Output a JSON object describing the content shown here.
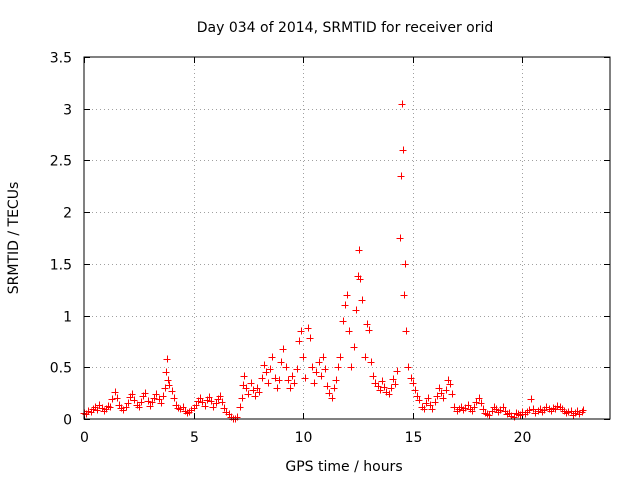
{
  "chart_data": {
    "type": "scatter",
    "title": "Day 034 of 2014, SRMTID for receiver orid",
    "xlabel": "GPS time / hours",
    "ylabel": "SRMTID / TECUs",
    "xlim": [
      0,
      24
    ],
    "ylim": [
      0,
      3.5
    ],
    "xticks": [
      0,
      5,
      10,
      15,
      20
    ],
    "xtick_labels": [
      "0",
      "5",
      "10",
      "15",
      "20"
    ],
    "yticks": [
      0,
      0.5,
      1,
      1.5,
      2,
      2.5,
      3,
      3.5
    ],
    "ytick_labels": [
      "0",
      "0.5",
      "1",
      "1.5",
      "2",
      "2.5",
      "3",
      "3.5"
    ],
    "grid": true,
    "marker": "+",
    "color": "#ff0000",
    "series": [
      {
        "name": "orid",
        "points": [
          [
            0.0,
            0.06
          ],
          [
            0.1,
            0.05
          ],
          [
            0.2,
            0.08
          ],
          [
            0.3,
            0.07
          ],
          [
            0.4,
            0.1
          ],
          [
            0.5,
            0.12
          ],
          [
            0.6,
            0.09
          ],
          [
            0.7,
            0.14
          ],
          [
            0.8,
            0.11
          ],
          [
            0.9,
            0.08
          ],
          [
            1.0,
            0.1
          ],
          [
            1.1,
            0.13
          ],
          [
            1.2,
            0.12
          ],
          [
            1.3,
            0.19
          ],
          [
            1.4,
            0.26
          ],
          [
            1.5,
            0.2
          ],
          [
            1.6,
            0.14
          ],
          [
            1.7,
            0.11
          ],
          [
            1.8,
            0.09
          ],
          [
            1.9,
            0.12
          ],
          [
            2.0,
            0.15
          ],
          [
            2.1,
            0.21
          ],
          [
            2.2,
            0.24
          ],
          [
            2.3,
            0.18
          ],
          [
            2.4,
            0.14
          ],
          [
            2.5,
            0.12
          ],
          [
            2.6,
            0.16
          ],
          [
            2.7,
            0.22
          ],
          [
            2.8,
            0.25
          ],
          [
            2.9,
            0.17
          ],
          [
            3.0,
            0.13
          ],
          [
            3.1,
            0.16
          ],
          [
            3.2,
            0.2
          ],
          [
            3.3,
            0.24
          ],
          [
            3.4,
            0.19
          ],
          [
            3.5,
            0.15
          ],
          [
            3.6,
            0.22
          ],
          [
            3.7,
            0.3
          ],
          [
            3.75,
            0.45
          ],
          [
            3.8,
            0.58
          ],
          [
            3.85,
            0.38
          ],
          [
            3.9,
            0.33
          ],
          [
            4.0,
            0.27
          ],
          [
            4.1,
            0.2
          ],
          [
            4.2,
            0.14
          ],
          [
            4.3,
            0.11
          ],
          [
            4.4,
            0.1
          ],
          [
            4.5,
            0.12
          ],
          [
            4.6,
            0.08
          ],
          [
            4.7,
            0.06
          ],
          [
            4.8,
            0.07
          ],
          [
            4.9,
            0.09
          ],
          [
            5.0,
            0.11
          ],
          [
            5.1,
            0.14
          ],
          [
            5.2,
            0.17
          ],
          [
            5.3,
            0.2
          ],
          [
            5.4,
            0.16
          ],
          [
            5.5,
            0.13
          ],
          [
            5.6,
            0.18
          ],
          [
            5.7,
            0.21
          ],
          [
            5.8,
            0.17
          ],
          [
            5.9,
            0.12
          ],
          [
            6.0,
            0.15
          ],
          [
            6.1,
            0.19
          ],
          [
            6.2,
            0.22
          ],
          [
            6.3,
            0.16
          ],
          [
            6.4,
            0.11
          ],
          [
            6.5,
            0.07
          ],
          [
            6.6,
            0.05
          ],
          [
            6.7,
            0.02
          ],
          [
            6.8,
            0.0
          ],
          [
            6.9,
            0.0
          ],
          [
            7.0,
            0.02
          ],
          [
            7.1,
            0.12
          ],
          [
            7.2,
            0.2
          ],
          [
            7.25,
            0.33
          ],
          [
            7.3,
            0.42
          ],
          [
            7.4,
            0.3
          ],
          [
            7.5,
            0.24
          ],
          [
            7.6,
            0.35
          ],
          [
            7.7,
            0.28
          ],
          [
            7.8,
            0.22
          ],
          [
            7.9,
            0.3
          ],
          [
            8.0,
            0.26
          ],
          [
            8.1,
            0.4
          ],
          [
            8.2,
            0.52
          ],
          [
            8.3,
            0.45
          ],
          [
            8.4,
            0.35
          ],
          [
            8.5,
            0.48
          ],
          [
            8.6,
            0.6
          ],
          [
            8.7,
            0.4
          ],
          [
            8.8,
            0.3
          ],
          [
            8.9,
            0.38
          ],
          [
            9.0,
            0.55
          ],
          [
            9.1,
            0.68
          ],
          [
            9.2,
            0.5
          ],
          [
            9.3,
            0.38
          ],
          [
            9.4,
            0.3
          ],
          [
            9.5,
            0.42
          ],
          [
            9.6,
            0.35
          ],
          [
            9.7,
            0.48
          ],
          [
            9.8,
            0.75
          ],
          [
            9.9,
            0.85
          ],
          [
            10.0,
            0.6
          ],
          [
            10.1,
            0.4
          ],
          [
            10.2,
            0.88
          ],
          [
            10.3,
            0.78
          ],
          [
            10.4,
            0.5
          ],
          [
            10.5,
            0.35
          ],
          [
            10.6,
            0.45
          ],
          [
            10.7,
            0.55
          ],
          [
            10.8,
            0.42
          ],
          [
            10.9,
            0.6
          ],
          [
            11.0,
            0.48
          ],
          [
            11.1,
            0.32
          ],
          [
            11.2,
            0.25
          ],
          [
            11.3,
            0.2
          ],
          [
            11.4,
            0.3
          ],
          [
            11.5,
            0.38
          ],
          [
            11.6,
            0.5
          ],
          [
            11.7,
            0.6
          ],
          [
            11.8,
            0.95
          ],
          [
            11.9,
            1.1
          ],
          [
            12.0,
            1.2
          ],
          [
            12.1,
            0.85
          ],
          [
            12.2,
            0.5
          ],
          [
            12.3,
            0.7
          ],
          [
            12.4,
            1.05
          ],
          [
            12.5,
            1.38
          ],
          [
            12.55,
            1.63
          ],
          [
            12.6,
            1.35
          ],
          [
            12.7,
            1.15
          ],
          [
            12.8,
            0.6
          ],
          [
            12.9,
            0.92
          ],
          [
            13.0,
            0.86
          ],
          [
            13.1,
            0.55
          ],
          [
            13.2,
            0.42
          ],
          [
            13.3,
            0.35
          ],
          [
            13.4,
            0.32
          ],
          [
            13.5,
            0.28
          ],
          [
            13.6,
            0.37
          ],
          [
            13.7,
            0.31
          ],
          [
            13.8,
            0.26
          ],
          [
            13.9,
            0.24
          ],
          [
            14.0,
            0.3
          ],
          [
            14.1,
            0.39
          ],
          [
            14.2,
            0.34
          ],
          [
            14.3,
            0.46
          ],
          [
            14.4,
            1.75
          ],
          [
            14.45,
            2.35
          ],
          [
            14.5,
            3.05
          ],
          [
            14.55,
            2.6
          ],
          [
            14.6,
            1.2
          ],
          [
            14.65,
            1.5
          ],
          [
            14.7,
            0.85
          ],
          [
            14.8,
            0.5
          ],
          [
            14.9,
            0.4
          ],
          [
            15.0,
            0.35
          ],
          [
            15.1,
            0.28
          ],
          [
            15.2,
            0.22
          ],
          [
            15.3,
            0.18
          ],
          [
            15.4,
            0.12
          ],
          [
            15.5,
            0.1
          ],
          [
            15.6,
            0.15
          ],
          [
            15.7,
            0.2
          ],
          [
            15.8,
            0.14
          ],
          [
            15.9,
            0.1
          ],
          [
            16.0,
            0.16
          ],
          [
            16.1,
            0.22
          ],
          [
            16.2,
            0.3
          ],
          [
            16.3,
            0.25
          ],
          [
            16.4,
            0.2
          ],
          [
            16.5,
            0.28
          ],
          [
            16.6,
            0.38
          ],
          [
            16.7,
            0.34
          ],
          [
            16.8,
            0.24
          ],
          [
            16.9,
            0.12
          ],
          [
            17.0,
            0.08
          ],
          [
            17.1,
            0.1
          ],
          [
            17.2,
            0.12
          ],
          [
            17.3,
            0.09
          ],
          [
            17.4,
            0.11
          ],
          [
            17.5,
            0.14
          ],
          [
            17.6,
            0.1
          ],
          [
            17.7,
            0.08
          ],
          [
            17.8,
            0.12
          ],
          [
            17.9,
            0.16
          ],
          [
            18.0,
            0.2
          ],
          [
            18.1,
            0.15
          ],
          [
            18.2,
            0.1
          ],
          [
            18.3,
            0.06
          ],
          [
            18.4,
            0.05
          ],
          [
            18.5,
            0.04
          ],
          [
            18.6,
            0.08
          ],
          [
            18.7,
            0.12
          ],
          [
            18.8,
            0.1
          ],
          [
            18.9,
            0.07
          ],
          [
            19.0,
            0.09
          ],
          [
            19.1,
            0.12
          ],
          [
            19.2,
            0.08
          ],
          [
            19.3,
            0.05
          ],
          [
            19.4,
            0.06
          ],
          [
            19.5,
            0.03
          ],
          [
            19.6,
            0.02
          ],
          [
            19.7,
            0.06
          ],
          [
            19.8,
            0.05
          ],
          [
            19.9,
            0.04
          ],
          [
            20.0,
            0.07
          ],
          [
            20.1,
            0.05
          ],
          [
            20.2,
            0.07
          ],
          [
            20.3,
            0.09
          ],
          [
            20.4,
            0.19
          ],
          [
            20.5,
            0.1
          ],
          [
            20.6,
            0.06
          ],
          [
            20.7,
            0.08
          ],
          [
            20.8,
            0.1
          ],
          [
            20.9,
            0.07
          ],
          [
            21.0,
            0.09
          ],
          [
            21.1,
            0.12
          ],
          [
            21.2,
            0.1
          ],
          [
            21.3,
            0.08
          ],
          [
            21.4,
            0.11
          ],
          [
            21.5,
            0.1
          ],
          [
            21.6,
            0.13
          ],
          [
            21.7,
            0.12
          ],
          [
            21.8,
            0.1
          ],
          [
            21.9,
            0.08
          ],
          [
            22.0,
            0.06
          ],
          [
            22.1,
            0.07
          ],
          [
            22.2,
            0.08
          ],
          [
            22.3,
            0.04
          ],
          [
            22.4,
            0.06
          ],
          [
            22.5,
            0.08
          ],
          [
            22.6,
            0.05
          ],
          [
            22.7,
            0.07
          ],
          [
            22.75,
            0.09
          ]
        ]
      }
    ]
  }
}
